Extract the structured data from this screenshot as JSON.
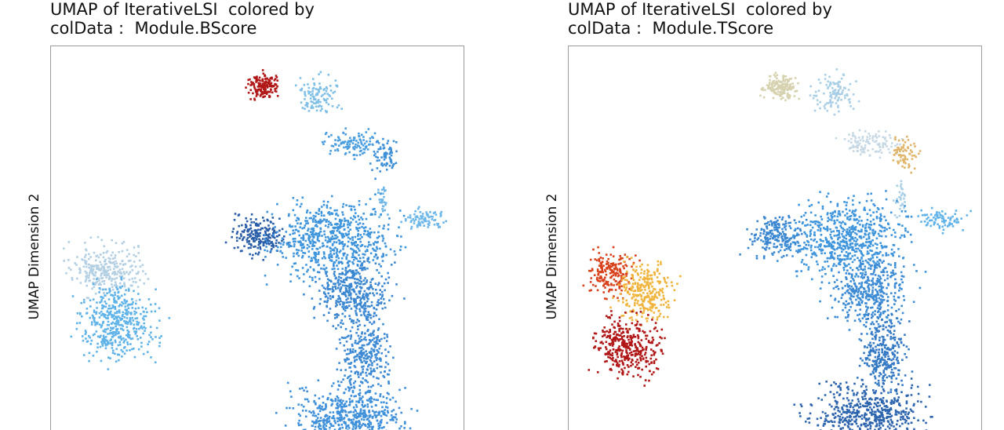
{
  "charts": [
    {
      "title_line1": "UMAP of IterativeLSI  colored by",
      "title_line2": "colData :  Module.BScore",
      "ylabel": "UMAP Dimension 2"
    },
    {
      "title_line1": "UMAP of IterativeLSI  colored by",
      "title_line2": "colData :  Module.TScore",
      "ylabel": "UMAP Dimension 2"
    }
  ],
  "chart_data": [
    {
      "type": "scatter",
      "title": "UMAP of IterativeLSI  colored by colData :  Module.BScore",
      "xlabel": "",
      "ylabel": "UMAP Dimension 2",
      "color_by": "Module.BScore",
      "colors": {
        "low": "#2a5ea8",
        "mid": "#5fb3e8",
        "light": "#a9cfe6",
        "pale": "#d8e1e8",
        "yellow": "#f2c84b",
        "orange": "#e8761f",
        "high": "#b01716"
      },
      "clusters": [
        {
          "cx": 0.51,
          "cy": 0.9,
          "rx": 0.035,
          "ry": 0.03,
          "color": "#b01716",
          "n": 160
        },
        {
          "cx": 0.64,
          "cy": 0.88,
          "rx": 0.05,
          "ry": 0.045,
          "color": "#7fbfe6",
          "n": 110
        },
        {
          "cx": 0.73,
          "cy": 0.75,
          "rx": 0.06,
          "ry": 0.03,
          "color": "#4a9ee0",
          "n": 110
        },
        {
          "cx": 0.81,
          "cy": 0.72,
          "rx": 0.03,
          "ry": 0.045,
          "color": "#3d8fd6",
          "n": 70
        },
        {
          "cx": 0.8,
          "cy": 0.6,
          "rx": 0.012,
          "ry": 0.05,
          "color": "#6db5e6",
          "n": 30
        },
        {
          "cx": 0.5,
          "cy": 0.51,
          "rx": 0.06,
          "ry": 0.045,
          "color": "#2a5ea8",
          "n": 200
        },
        {
          "cx": 0.68,
          "cy": 0.5,
          "rx": 0.13,
          "ry": 0.09,
          "color": "#3f95dc",
          "n": 650
        },
        {
          "cx": 0.9,
          "cy": 0.55,
          "rx": 0.05,
          "ry": 0.025,
          "color": "#6cb6e8",
          "n": 80
        },
        {
          "cx": 0.73,
          "cy": 0.36,
          "rx": 0.08,
          "ry": 0.08,
          "color": "#3a86d0",
          "n": 400
        },
        {
          "cx": 0.76,
          "cy": 0.2,
          "rx": 0.05,
          "ry": 0.09,
          "color": "#3e8ad4",
          "n": 300
        },
        {
          "cx": 0.72,
          "cy": 0.04,
          "rx": 0.12,
          "ry": 0.07,
          "color": "#3f90da",
          "n": 550
        },
        {
          "cx": 0.13,
          "cy": 0.42,
          "rx": 0.08,
          "ry": 0.06,
          "color": "#b3cfe3",
          "n": 280
        },
        {
          "cx": 0.16,
          "cy": 0.28,
          "rx": 0.08,
          "ry": 0.09,
          "color": "#5fb3e8",
          "n": 450
        }
      ]
    },
    {
      "type": "scatter",
      "title": "UMAP of IterativeLSI  colored by colData :  Module.TScore",
      "xlabel": "",
      "ylabel": "UMAP Dimension 2",
      "color_by": "Module.TScore",
      "colors": {
        "low": "#2a5ea8",
        "mid": "#5fb3e8",
        "light": "#a9cfe6",
        "pale": "#d8e1e8",
        "yellow": "#f2c84b",
        "orange": "#e8761f",
        "high": "#b01716"
      },
      "clusters": [
        {
          "cx": 0.51,
          "cy": 0.9,
          "rx": 0.035,
          "ry": 0.03,
          "color": "#d6d2b0",
          "n": 160
        },
        {
          "cx": 0.64,
          "cy": 0.88,
          "rx": 0.05,
          "ry": 0.045,
          "color": "#a9cfe6",
          "n": 110
        },
        {
          "cx": 0.73,
          "cy": 0.75,
          "rx": 0.06,
          "ry": 0.03,
          "color": "#c6d8e4",
          "n": 110
        },
        {
          "cx": 0.81,
          "cy": 0.72,
          "rx": 0.03,
          "ry": 0.045,
          "color": "#e0b56a",
          "n": 70
        },
        {
          "cx": 0.8,
          "cy": 0.6,
          "rx": 0.012,
          "ry": 0.05,
          "color": "#a9cfe6",
          "n": 30
        },
        {
          "cx": 0.5,
          "cy": 0.51,
          "rx": 0.06,
          "ry": 0.045,
          "color": "#3a86d0",
          "n": 200
        },
        {
          "cx": 0.68,
          "cy": 0.5,
          "rx": 0.13,
          "ry": 0.09,
          "color": "#3f95dc",
          "n": 650
        },
        {
          "cx": 0.9,
          "cy": 0.55,
          "rx": 0.05,
          "ry": 0.025,
          "color": "#5fb3e8",
          "n": 80
        },
        {
          "cx": 0.73,
          "cy": 0.36,
          "rx": 0.08,
          "ry": 0.08,
          "color": "#3c8bd4",
          "n": 400
        },
        {
          "cx": 0.76,
          "cy": 0.2,
          "rx": 0.05,
          "ry": 0.09,
          "color": "#3479c4",
          "n": 300
        },
        {
          "cx": 0.72,
          "cy": 0.04,
          "rx": 0.12,
          "ry": 0.07,
          "color": "#2d64ae",
          "n": 550
        },
        {
          "cx": 0.1,
          "cy": 0.41,
          "rx": 0.05,
          "ry": 0.05,
          "color": "#d8411b",
          "n": 200
        },
        {
          "cx": 0.18,
          "cy": 0.36,
          "rx": 0.06,
          "ry": 0.07,
          "color": "#f0b43d",
          "n": 280
        },
        {
          "cx": 0.14,
          "cy": 0.22,
          "rx": 0.07,
          "ry": 0.07,
          "color": "#b01716",
          "n": 380
        }
      ]
    }
  ]
}
